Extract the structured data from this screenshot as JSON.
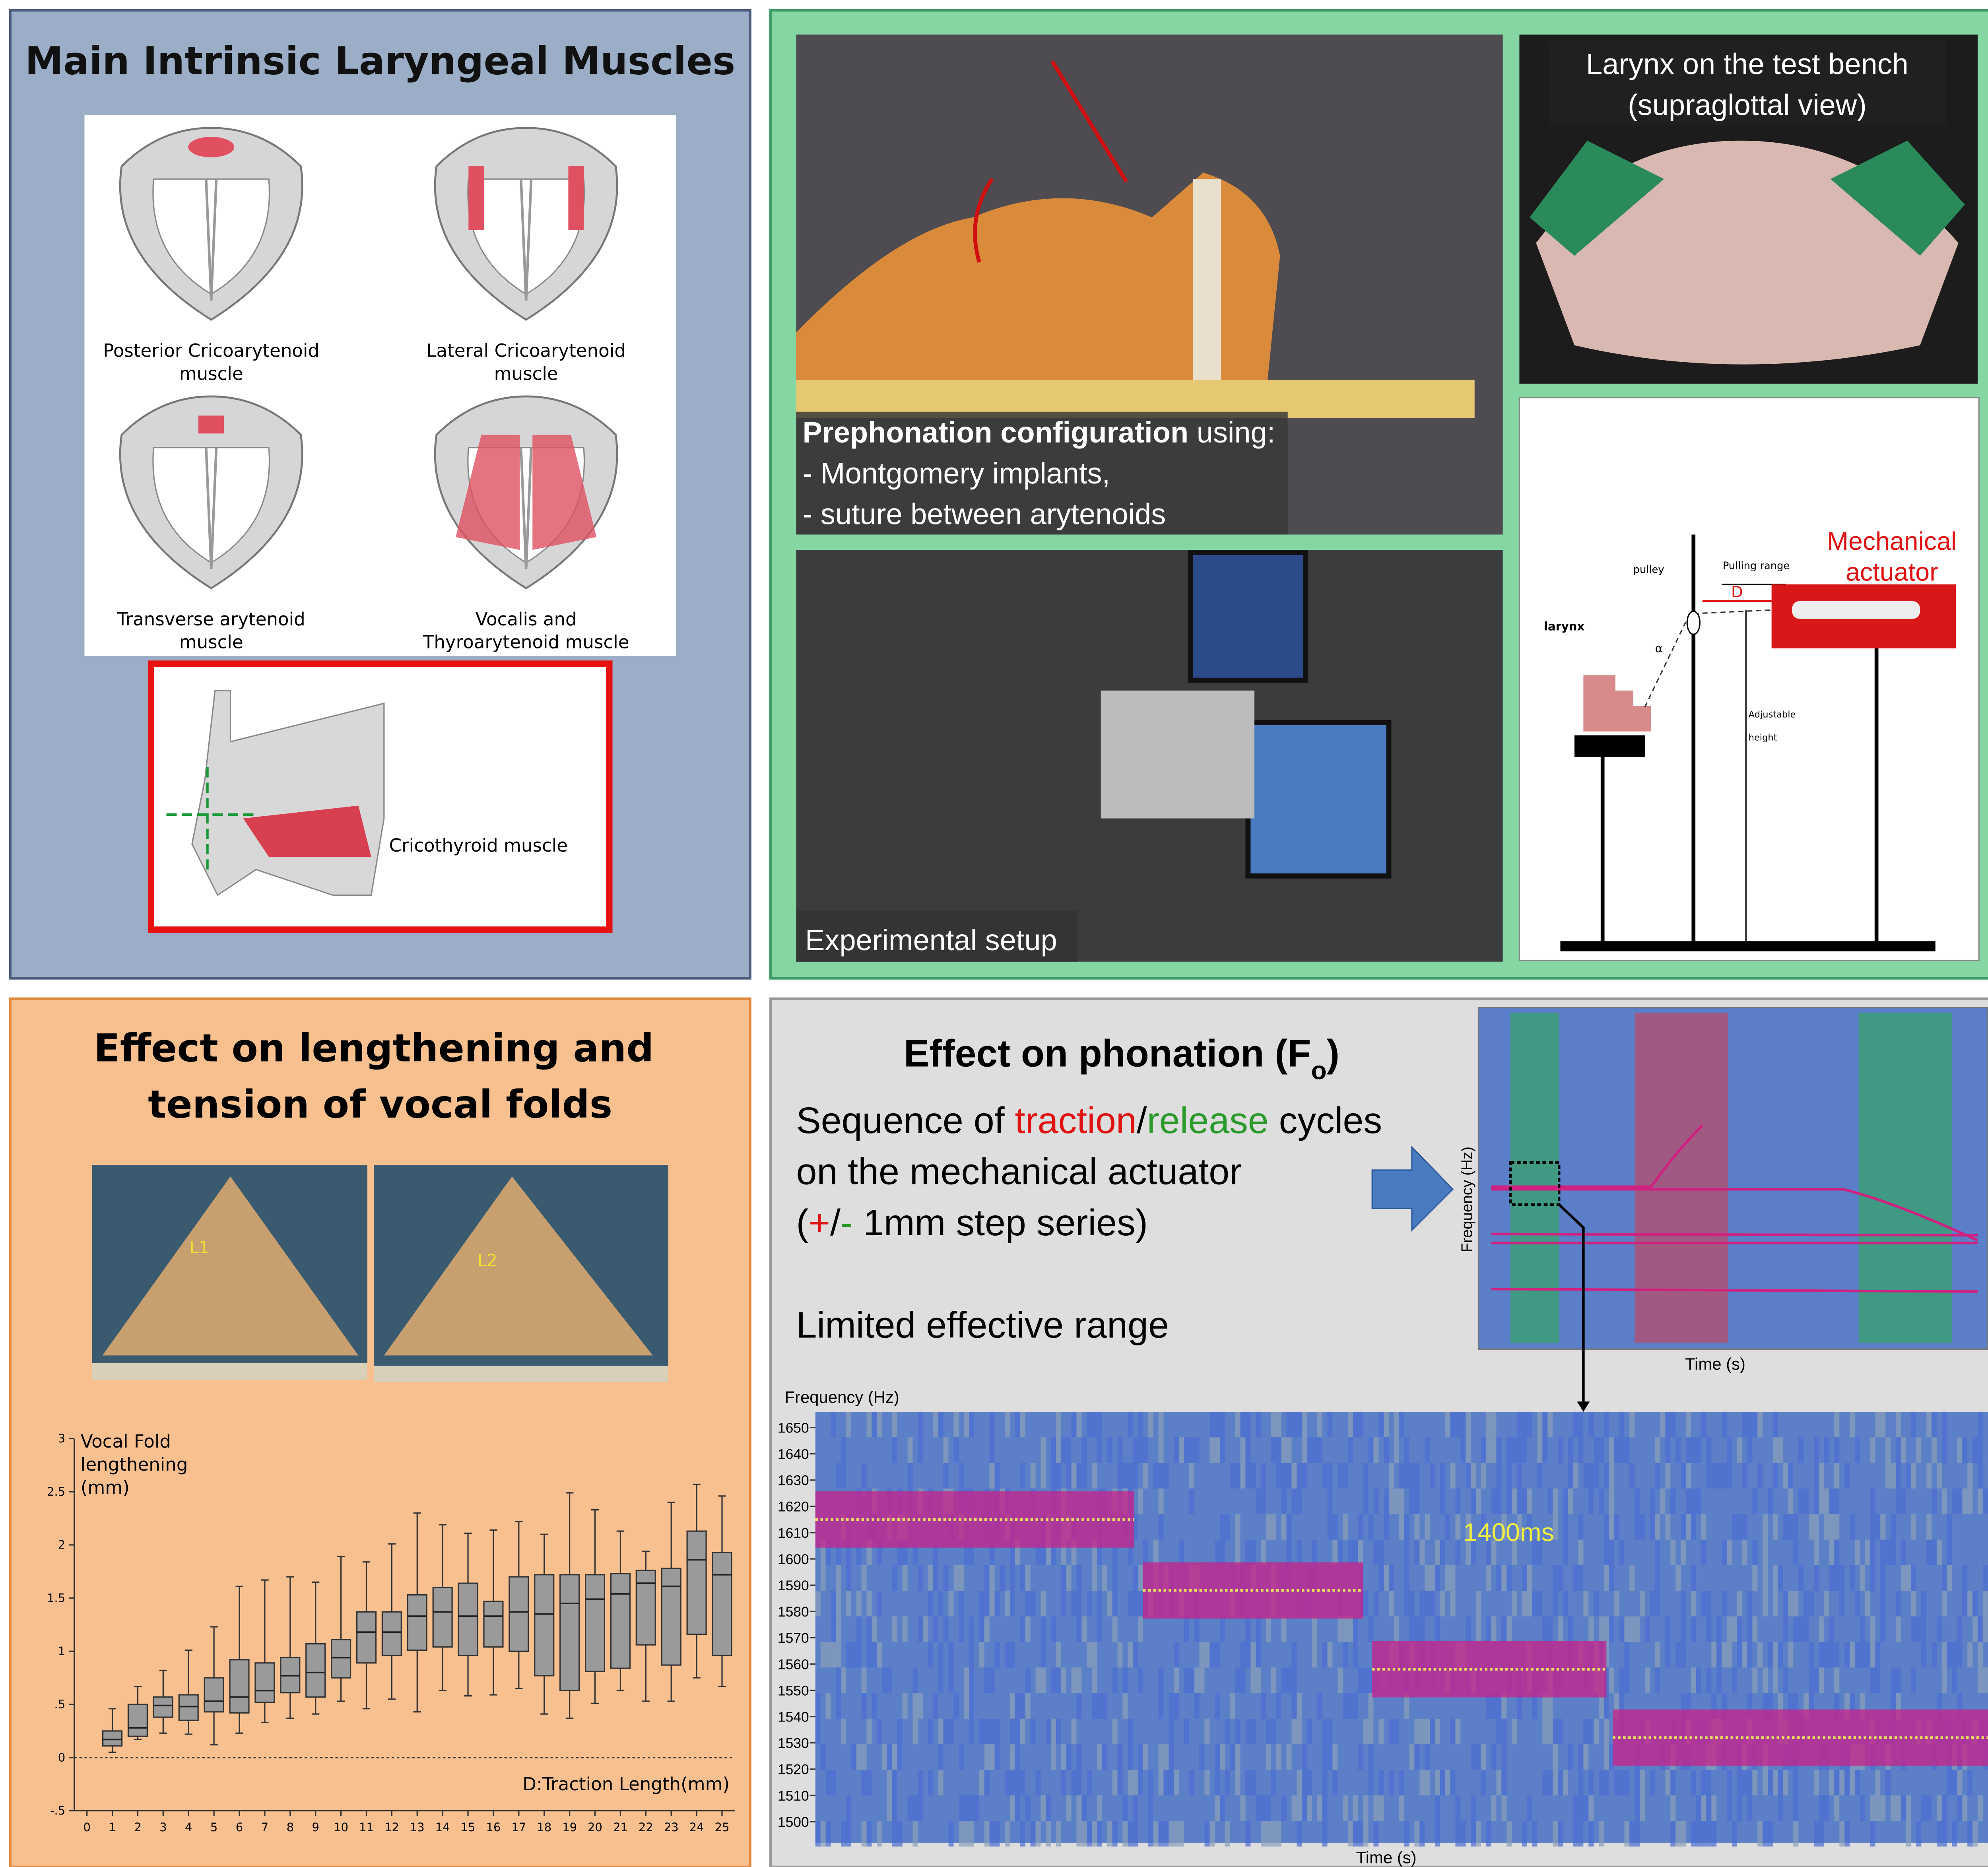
{
  "panels": {
    "muscles": {
      "title": "Main Intrinsic Laryngeal Muscles",
      "captions": [
        [
          "Posterior Cricoarytenoid",
          "muscle"
        ],
        [
          "Lateral Cricoarytenoid",
          "muscle"
        ],
        [
          "Transverse arytenoid",
          "muscle"
        ],
        [
          "Vocalis and",
          "Thyroarytenoid muscle"
        ]
      ],
      "cricothyroid": "Cricothyroid muscle"
    },
    "setup": {
      "bench": [
        "Larynx on the test bench",
        "(supraglottal view)"
      ],
      "prephonation_bold": "Prephonation configuration",
      "prephonation_rest": " using:",
      "prephonation_items": [
        "- Montgomery implants,",
        "- suture between arytenoids"
      ],
      "experimental": "Experimental setup",
      "diagram": {
        "actuator": [
          "Mechanical",
          "actuator"
        ],
        "pulley": "pulley",
        "pulling_range": "Pulling range",
        "d": "D",
        "larynx": "larynx",
        "alpha": "α",
        "height": [
          "Adjustable",
          "height"
        ]
      }
    },
    "lengthening": {
      "title": [
        "Effect on lengthening and",
        "tension of vocal folds"
      ],
      "photo_labels": [
        "L1",
        "L2"
      ]
    },
    "phonation": {
      "title": "Effect on phonation (F",
      "title_sub": "o",
      "title_end": ")",
      "line1": [
        "Sequence of ",
        "traction",
        "/",
        "release",
        " cycles"
      ],
      "line2": "on the mechanical actuator",
      "line3": [
        "(",
        "+",
        "/",
        "-",
        " 1mm step series)"
      ],
      "line4": "Limited effective range",
      "small_spectrogram": {
        "ylabel": "Frequency (Hz)",
        "xlabel": "Time (s)"
      }
    }
  },
  "chart_data": [
    {
      "type": "box",
      "ylabel": [
        "Vocal Fold",
        "lengthening",
        "(mm)"
      ],
      "xlabel": "D:Traction Length(mm)",
      "x": [
        1,
        2,
        3,
        4,
        5,
        6,
        7,
        8,
        9,
        10,
        11,
        12,
        13,
        14,
        15,
        16,
        17,
        18,
        19,
        20,
        21,
        22,
        23,
        24,
        25
      ],
      "min": [
        0.05,
        0.17,
        0.23,
        0.22,
        0.12,
        0.23,
        0.33,
        0.37,
        0.41,
        0.53,
        0.46,
        0.55,
        0.43,
        0.63,
        0.58,
        0.59,
        0.65,
        0.41,
        0.37,
        0.51,
        0.63,
        0.53,
        0.53,
        0.75,
        0.67
      ],
      "q1": [
        0.11,
        0.2,
        0.38,
        0.35,
        0.43,
        0.42,
        0.52,
        0.61,
        0.57,
        0.75,
        0.89,
        0.96,
        1.01,
        1.04,
        0.96,
        1.04,
        1.0,
        0.77,
        0.63,
        0.81,
        0.84,
        1.06,
        0.87,
        1.16,
        0.96
      ],
      "median": [
        0.17,
        0.28,
        0.49,
        0.48,
        0.53,
        0.57,
        0.63,
        0.77,
        0.8,
        0.94,
        1.18,
        1.18,
        1.33,
        1.37,
        1.33,
        1.33,
        1.37,
        1.35,
        1.45,
        1.49,
        1.54,
        1.64,
        1.61,
        1.86,
        1.72
      ],
      "q3": [
        0.25,
        0.5,
        0.57,
        0.59,
        0.75,
        0.92,
        0.89,
        0.94,
        1.07,
        1.11,
        1.37,
        1.37,
        1.53,
        1.6,
        1.64,
        1.47,
        1.7,
        1.72,
        1.72,
        1.72,
        1.73,
        1.76,
        1.78,
        2.13,
        1.93
      ],
      "max": [
        0.46,
        0.67,
        0.82,
        1.01,
        1.23,
        1.61,
        1.67,
        1.7,
        1.65,
        1.89,
        1.84,
        2.01,
        2.3,
        2.19,
        2.11,
        2.14,
        2.22,
        2.1,
        2.49,
        2.33,
        2.13,
        1.94,
        2.4,
        2.57,
        2.46
      ],
      "color": "#9a9a9a",
      "xlim": [
        -0.5,
        25.5
      ],
      "xticks": [
        0,
        1,
        2,
        3,
        4,
        5,
        6,
        7,
        8,
        9,
        10,
        11,
        12,
        13,
        14,
        15,
        16,
        17,
        18,
        19,
        20,
        21,
        22,
        23,
        24,
        25
      ],
      "ylim": [
        -0.5,
        3
      ],
      "yticks": [
        {
          "value": -0.5,
          "label": "-.5"
        },
        0,
        {
          "value": 0.5,
          "label": ".5"
        },
        1,
        1.5,
        2,
        2.5,
        3
      ]
    },
    {
      "type": "step",
      "ylabel": "Frequency (Hz)",
      "xlabel": "Time (s)",
      "annotation": "1400ms",
      "values": [
        1615,
        1588,
        1558,
        1532
      ],
      "color": "#e8e060",
      "ylim": [
        1492,
        1656
      ],
      "yticks": [
        1500,
        1510,
        1520,
        1530,
        1540,
        1550,
        1560,
        1570,
        1580,
        1590,
        1600,
        1610,
        1620,
        1630,
        1640,
        1650
      ]
    }
  ]
}
